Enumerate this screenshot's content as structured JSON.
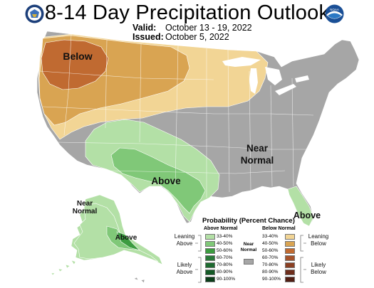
{
  "header": {
    "title": "8-14 Day Precipitation Outlook",
    "valid_label": "Valid:",
    "valid_value": "October 13 - 19, 2022",
    "issued_label": "Issued:",
    "issued_value": "October 5, 2022"
  },
  "logos": {
    "left": "doc-seal-icon",
    "right": "noaa-logo-icon",
    "right_text": "NOAA"
  },
  "map": {
    "labels": {
      "below": "Below",
      "above": "Above",
      "near_normal": "Near Normal",
      "alaska_near_normal": "Near Normal",
      "alaska_above": "Above",
      "florida_above": "Above"
    },
    "colors": {
      "near_normal": "#a6a6a6",
      "above_33_40": "#b3e0a6",
      "above_40_50": "#80c878",
      "above_50_60": "#3c9c40",
      "below_33_40": "#f2d595",
      "below_40_50": "#d9a452",
      "below_50_60": "#c06a31",
      "ocean": "#ffffff",
      "water": "#ffffff"
    }
  },
  "legend": {
    "title": "Probability (Percent Chance)",
    "above_header": "Above Normal",
    "below_header": "Below Normal",
    "near_normal_label": "Near Normal",
    "leaning_above": "Leaning Above",
    "likely_above": "Likely Above",
    "leaning_below": "Leaning Below",
    "likely_below": "Likely Below",
    "above_bins": [
      {
        "label": "33-40%",
        "color": "#b3e0a6"
      },
      {
        "label": "40-50%",
        "color": "#80c878"
      },
      {
        "label": "50-60%",
        "color": "#3c9c40"
      },
      {
        "label": "60-70%",
        "color": "#2a7a3a"
      },
      {
        "label": "70-80%",
        "color": "#1e6a30"
      },
      {
        "label": "80-90%",
        "color": "#145a26"
      },
      {
        "label": "90-100%",
        "color": "#0c3e1a"
      }
    ],
    "below_bins": [
      {
        "label": "33-40%",
        "color": "#f2d595"
      },
      {
        "label": "40-50%",
        "color": "#d9a452"
      },
      {
        "label": "50-60%",
        "color": "#c06a31"
      },
      {
        "label": "60-70%",
        "color": "#a5522a"
      },
      {
        "label": "70-80%",
        "color": "#8a3f22"
      },
      {
        "label": "80-90%",
        "color": "#6e2e1c"
      },
      {
        "label": "90-100%",
        "color": "#521f14"
      }
    ]
  }
}
